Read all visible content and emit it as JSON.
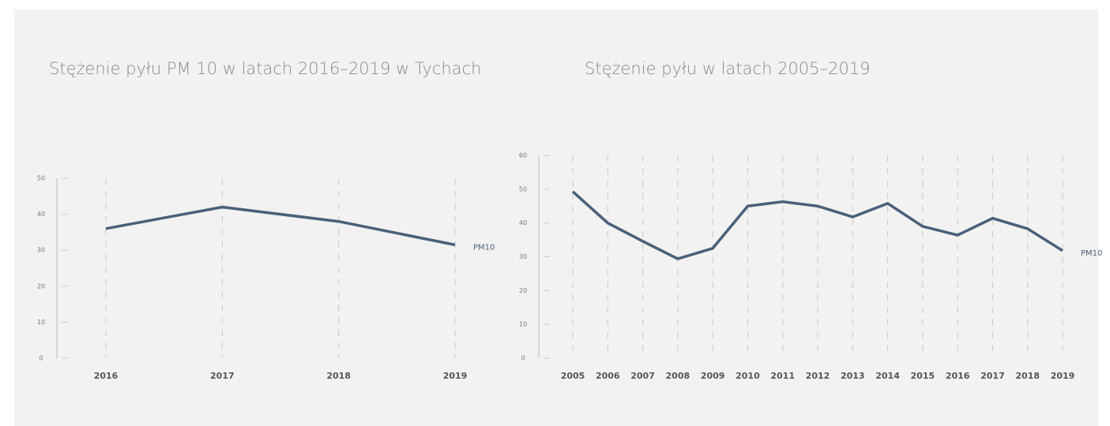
{
  "chart_data": [
    {
      "type": "line",
      "title": "Stężenie pyłu PM 10 w latach 2016–2019 w Tychach",
      "categories": [
        "2016",
        "2017",
        "2018",
        "2019"
      ],
      "series": [
        {
          "name": "PM10",
          "color": "#4a6079",
          "values": [
            36,
            42,
            38,
            31.5
          ]
        }
      ],
      "ylim": [
        0,
        50
      ],
      "yticks": [
        0,
        10,
        20,
        30,
        40,
        50
      ],
      "grid": true
    },
    {
      "type": "line",
      "title": "Stężenie pyłu w latach 2005–2019",
      "categories": [
        "2005",
        "2006",
        "2007",
        "2008",
        "2009",
        "2010",
        "2011",
        "2012",
        "2013",
        "2014",
        "2015",
        "2016",
        "2017",
        "2018",
        "2019"
      ],
      "series": [
        {
          "name": "PM10",
          "color": "#4a6079",
          "values": [
            49.3,
            40,
            34.6,
            29.4,
            32.5,
            45,
            46.3,
            45,
            41.8,
            45.8,
            39,
            36.4,
            41.4,
            38.3,
            31.8
          ]
        }
      ],
      "ylim": [
        0,
        60
      ],
      "yticks": [
        0,
        10,
        20,
        30,
        40,
        50,
        60
      ],
      "grid": true
    }
  ]
}
